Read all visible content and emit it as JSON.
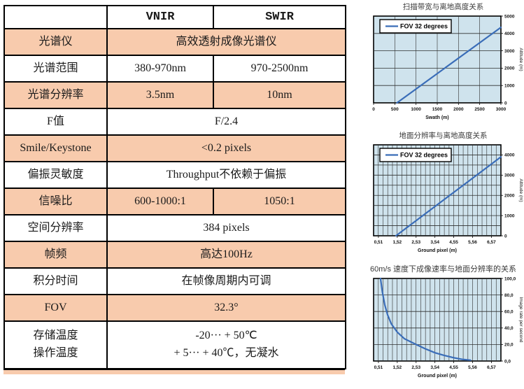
{
  "page": {
    "background": "#ffffff"
  },
  "theme": {
    "table_shaded_row": "#f8cbad",
    "table_border": "#000000",
    "chart_plot_bg": "#cfe3ed",
    "chart_grid": "#2f2f2f",
    "chart_line": "#3a6db8",
    "chart_border": "#000000",
    "chart_title_color": "#3a3a3a",
    "legend_bg": "#ffffff"
  },
  "table": {
    "header": {
      "corner": "",
      "vnir": "VNIR",
      "swir": "SWIR"
    },
    "rows": [
      {
        "label_lines": [
          "光谱仪"
        ],
        "shaded": true,
        "cells": [
          {
            "span": 2,
            "lines": [
              "高效透射成像光谱仪"
            ]
          }
        ]
      },
      {
        "label_lines": [
          "光谱范围"
        ],
        "shaded": false,
        "cells": [
          {
            "span": 1,
            "lines": [
              "380-970nm"
            ]
          },
          {
            "span": 1,
            "lines": [
              "970-2500nm"
            ]
          }
        ]
      },
      {
        "label_lines": [
          "光谱分辨率"
        ],
        "shaded": true,
        "cells": [
          {
            "span": 1,
            "lines": [
              "3.5nm"
            ]
          },
          {
            "span": 1,
            "lines": [
              "10nm"
            ]
          }
        ]
      },
      {
        "label_lines": [
          "F值"
        ],
        "shaded": false,
        "cells": [
          {
            "span": 2,
            "lines": [
              "F/2.4"
            ]
          }
        ]
      },
      {
        "label_lines": [
          "Smile/Keystone"
        ],
        "shaded": true,
        "cells": [
          {
            "span": 2,
            "lines": [
              "<0.2 pixels"
            ]
          }
        ]
      },
      {
        "label_lines": [
          "偏振灵敏度"
        ],
        "shaded": false,
        "cells": [
          {
            "span": 2,
            "lines": [
              "Throughput不依赖于偏振"
            ]
          }
        ]
      },
      {
        "label_lines": [
          "信噪比"
        ],
        "shaded": true,
        "cells": [
          {
            "span": 1,
            "lines": [
              "600-1000:1"
            ]
          },
          {
            "span": 1,
            "lines": [
              "1050:1"
            ]
          }
        ]
      },
      {
        "label_lines": [
          "空间分辨率"
        ],
        "shaded": false,
        "cells": [
          {
            "span": 2,
            "lines": [
              "384 pixels"
            ]
          }
        ]
      },
      {
        "label_lines": [
          "帧频"
        ],
        "shaded": true,
        "cells": [
          {
            "span": 2,
            "lines": [
              "高达100Hz"
            ]
          }
        ]
      },
      {
        "label_lines": [
          "积分时间"
        ],
        "shaded": false,
        "cells": [
          {
            "span": 2,
            "lines": [
              "在帧像周期内可调"
            ]
          }
        ]
      },
      {
        "label_lines": [
          "FOV"
        ],
        "shaded": true,
        "cells": [
          {
            "span": 2,
            "lines": [
              "32.3°"
            ]
          }
        ]
      },
      {
        "label_lines": [
          "存储温度",
          "操作温度"
        ],
        "shaded": false,
        "tall": true,
        "cells": [
          {
            "span": 2,
            "lines": [
              "-20··· + 50℃",
              "+ 5··· + 40℃，无凝水"
            ]
          }
        ]
      }
    ]
  },
  "chart_data": [
    {
      "type": "line",
      "title": "扫描带宽与离地高度关系",
      "xlabel": "Swath (m)",
      "ylabel": "Altitude (m)",
      "legend": "FOV 32 degrees",
      "legend_position": "upper-left",
      "xlim": [
        0,
        3000
      ],
      "ylim": [
        0,
        5000
      ],
      "x_ticks": [
        0,
        500,
        1000,
        1500,
        2000,
        2500,
        3000
      ],
      "x_tick_labels": [
        "0",
        "500",
        "1000",
        "1500",
        "2000",
        "2500",
        "3000"
      ],
      "y_ticks": [
        0,
        1000,
        2000,
        3000,
        4000,
        5000
      ],
      "y_tick_labels": [
        "0",
        "1000",
        "2000",
        "3000",
        "4000",
        "5000"
      ],
      "x_grid_divisions": 6,
      "y_grid_divisions": 5,
      "grid": true,
      "series": [
        {
          "name": "FOV 32 degrees",
          "points": [
            [
              550,
              0
            ],
            [
              3000,
              4350
            ]
          ]
        }
      ]
    },
    {
      "type": "line",
      "title": "地面分辨率与离地高度关系",
      "xlabel": "Ground pixel (m)",
      "ylabel": "Altitude (m)",
      "legend": "FOV 32 degrees",
      "legend_position": "upper-left",
      "xlim": [
        0.25,
        7.08
      ],
      "ylim": [
        0,
        4500
      ],
      "x_ticks": [
        0.51,
        1.52,
        2.53,
        3.54,
        4.55,
        5.56,
        6.57
      ],
      "x_tick_labels": [
        "0,51",
        "1,52",
        "2,53",
        "3,54",
        "4,55",
        "5,56",
        "6,57"
      ],
      "y_ticks": [
        0,
        1000,
        2000,
        3000,
        4000
      ],
      "y_tick_labels": [
        "0",
        "1000",
        "2000",
        "3000",
        "4000"
      ],
      "x_grid_divisions": 27,
      "y_grid_divisions": 9,
      "grid": true,
      "series": [
        {
          "name": "FOV 32 degrees",
          "points": [
            [
              1.45,
              0
            ],
            [
              7.08,
              3900
            ]
          ]
        }
      ]
    },
    {
      "type": "line",
      "title": "60m/s 速度下成像速率与地面分辨率的关系",
      "xlabel": "Ground pixel (m)",
      "ylabel": "Image rate per second",
      "legend": null,
      "xlim": [
        0.25,
        7.08
      ],
      "ylim": [
        0,
        100
      ],
      "x_ticks": [
        0.51,
        1.52,
        2.53,
        3.54,
        4.55,
        5.56,
        6.57
      ],
      "x_tick_labels": [
        "0,51",
        "1,52",
        "2,53",
        "3,54",
        "4,55",
        "5,56",
        "6,57"
      ],
      "y_ticks": [
        0,
        20,
        40,
        60,
        80,
        100
      ],
      "y_tick_labels": [
        "0,0",
        "20,0",
        "40,0",
        "60,0",
        "80,0",
        "100,0"
      ],
      "x_grid_divisions": 27,
      "y_grid_divisions": 5,
      "grid": true,
      "series": [
        {
          "name": "image rate",
          "points": [
            [
              0.62,
              100
            ],
            [
              0.72,
              84
            ],
            [
              0.85,
              68
            ],
            [
              1.0,
              56
            ],
            [
              1.2,
              45
            ],
            [
              1.52,
              35
            ],
            [
              1.9,
              27
            ],
            [
              2.53,
              20
            ],
            [
              3.0,
              15
            ],
            [
              3.54,
              10
            ],
            [
              4.0,
              7
            ],
            [
              4.55,
              4
            ],
            [
              5.0,
              2
            ],
            [
              5.45,
              1
            ]
          ]
        }
      ]
    }
  ]
}
